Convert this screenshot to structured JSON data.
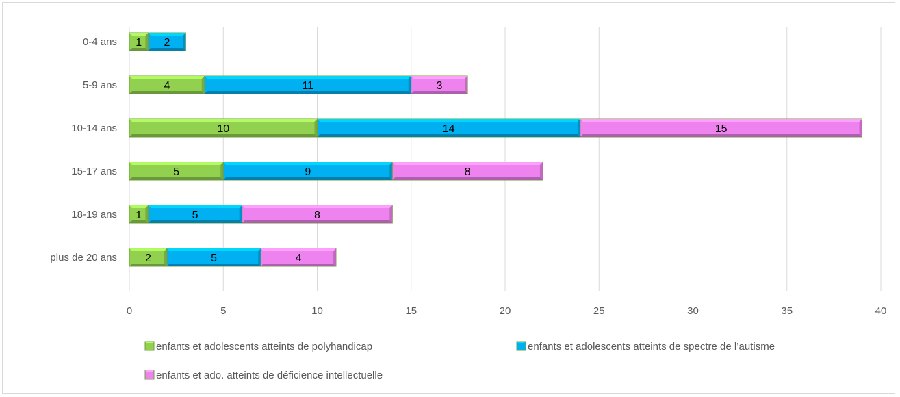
{
  "chart_data": {
    "type": "bar",
    "orientation": "horizontal",
    "stacked": true,
    "categories": [
      "0-4 ans",
      "5-9 ans",
      "10-14 ans",
      "15-17 ans",
      "18-19 ans",
      "plus de 20 ans"
    ],
    "series": [
      {
        "name": "enfants et adolescents atteints de polyhandicap",
        "color": "#92d050",
        "values": [
          1,
          4,
          10,
          5,
          1,
          2
        ]
      },
      {
        "name": "enfants et adolescents atteints de spectre de l’autisme",
        "color": "#00b0f0",
        "values": [
          2,
          11,
          14,
          9,
          5,
          5
        ]
      },
      {
        "name": "enfants et ado. atteints de déficience intellectuelle",
        "color": "#ee82ee",
        "values": [
          null,
          3,
          15,
          8,
          8,
          4
        ]
      }
    ],
    "xlim": [
      0,
      40
    ],
    "xticks": [
      0,
      5,
      10,
      15,
      20,
      25,
      30,
      35,
      40
    ],
    "grid": true,
    "legend_position": "bottom",
    "title": "",
    "xlabel": "",
    "ylabel": ""
  }
}
